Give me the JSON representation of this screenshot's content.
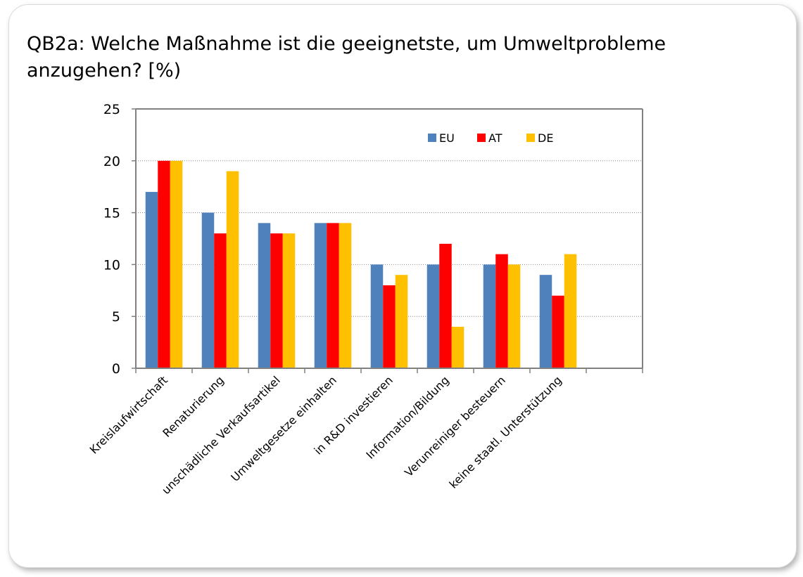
{
  "slide": {
    "title": "QB2a: Welche Maßnahme ist die geeignetste, um Umweltprobleme anzugehen? [%)"
  },
  "chart_data": {
    "type": "bar",
    "title": "",
    "xlabel": "",
    "ylabel": "",
    "ylim": [
      0,
      25
    ],
    "yticks": [
      0,
      5,
      10,
      15,
      20,
      25
    ],
    "grid": true,
    "legend_position": "top-right",
    "categories": [
      "Kreislaufwirtschaft",
      "Renaturierung",
      "unschädliche Verkaufsartikel",
      "Umweltgesetze einhalten",
      "in R&D investieren",
      "Information/Bildung",
      "Verunreiniger besteuern",
      "keine staatl. Unterstützung",
      ""
    ],
    "series": [
      {
        "name": "EU",
        "color": "#4F81BD",
        "values": [
          17,
          15,
          14,
          14,
          10,
          10,
          10,
          9,
          null
        ]
      },
      {
        "name": "AT",
        "color": "#FF0000",
        "values": [
          20,
          13,
          13,
          14,
          8,
          12,
          11,
          7,
          null
        ]
      },
      {
        "name": "DE",
        "color": "#FFC000",
        "values": [
          20,
          19,
          13,
          14,
          9,
          4,
          10,
          11,
          null
        ]
      }
    ]
  }
}
